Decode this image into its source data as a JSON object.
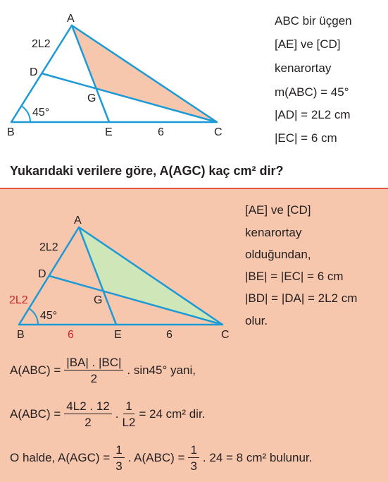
{
  "problem": {
    "figure_labels": {
      "A": "A",
      "B": "B",
      "C": "C",
      "D": "D",
      "E": "E",
      "G": "G",
      "ad": "2L2",
      "ec": "6",
      "angle": "45°"
    },
    "given": [
      "ABC bir üçgen",
      "[AE] ve [CD]",
      "kenarortay",
      "m(ABC) = 45°",
      "|AD| = 2L2 cm",
      "|EC| = 6 cm"
    ],
    "question": "Yukarıdaki verilere göre, A(AGC) kaç cm² dir?"
  },
  "solution": {
    "figure_labels": {
      "A": "A",
      "B": "B",
      "C": "C",
      "D": "D",
      "E": "E",
      "G": "G",
      "ad": "2L2",
      "bd": "2L2",
      "be": "6",
      "ec": "6",
      "angle": "45°"
    },
    "notes": [
      "[AE] ve [CD]",
      "kenarortay",
      "olduğundan,",
      "|BE| = |EC| = 6 cm",
      "|BD| = |DA| = 2L2 cm",
      "olur."
    ],
    "line1": {
      "lhs": "A(ABC) =",
      "num": "|BA| . |BC|",
      "den": "2",
      "rest": ". sin45° yani,"
    },
    "line2": {
      "lhs": "A(ABC) =",
      "num": "4L2 . 12",
      "den": "2",
      "dot": ".",
      "num2": "1",
      "den2": "L2",
      "rest": "= 24 cm² dir."
    },
    "line3": {
      "lhs": "O halde, A(AGC) =",
      "num": "1",
      "den": "3",
      "mid": ". A(ABC) =",
      "num2": "1",
      "den2": "3",
      "rest": ". 24 = 8 cm² bulunur."
    }
  },
  "colors": {
    "top_fill": "#f7c7ad",
    "bottom_fill": "#cfe6b8",
    "line": "#1c9ad6",
    "box_bg": "#f7c7ad",
    "box_border": "#e2573f",
    "red": "#c9252c"
  }
}
